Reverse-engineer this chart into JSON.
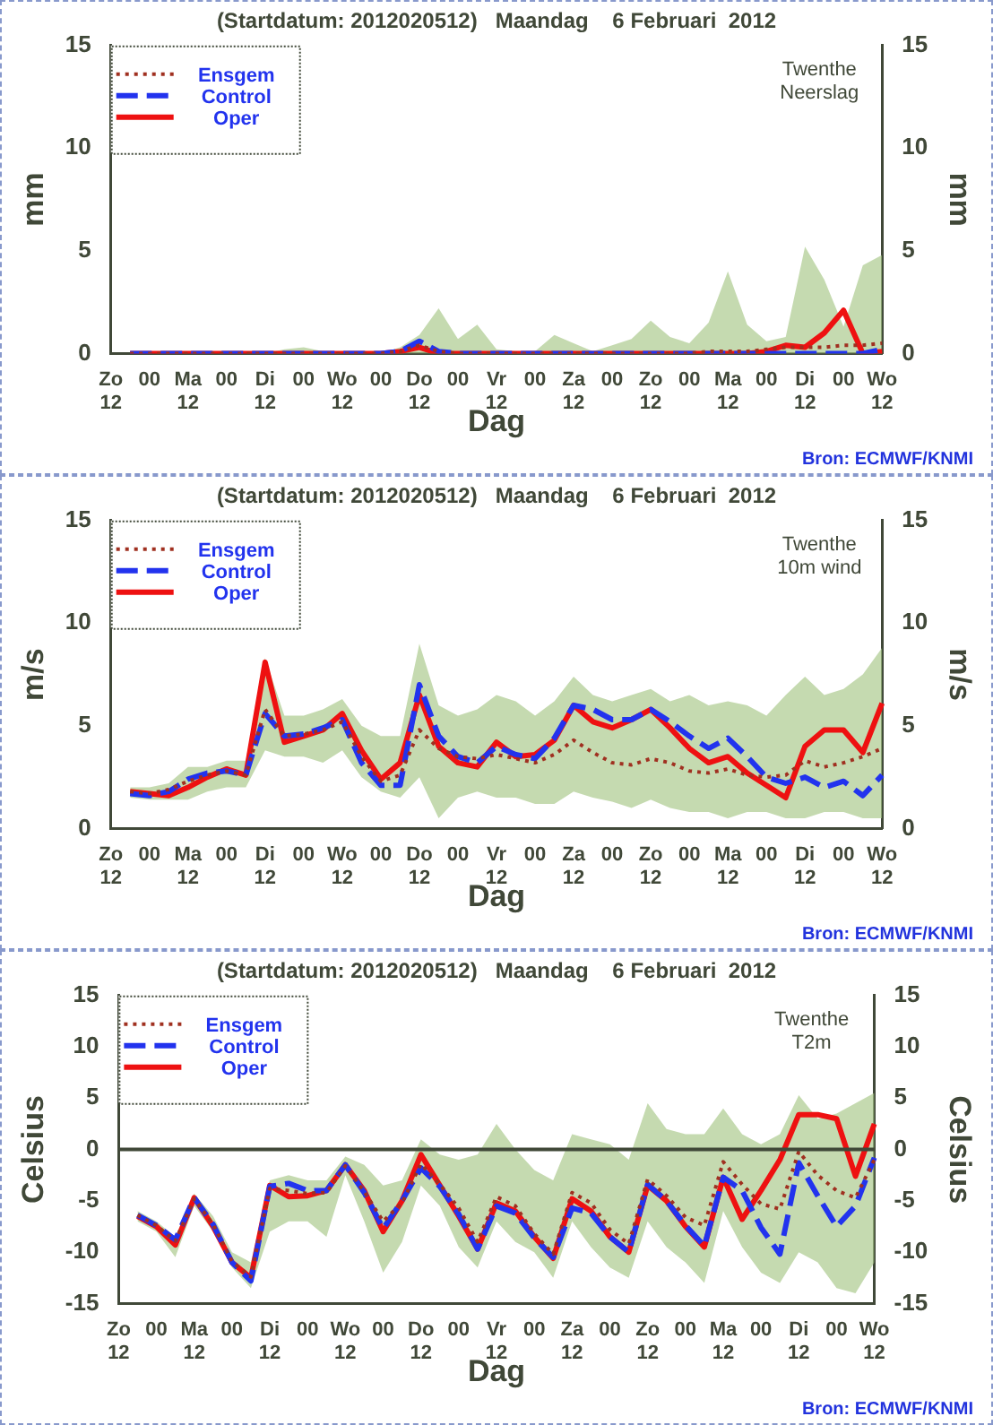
{
  "chart_data": [
    {
      "type": "line",
      "title": "(Startdatum: 2012020512)   Maandag    6 Februari  2012",
      "xlabel": "Dag",
      "ylabel": "mm",
      "y2label": "mm",
      "legend": "top left",
      "marker": "none",
      "grid": false,
      "categories": [
        "Zo\n12",
        null,
        "00",
        null,
        "Ma\n12",
        null,
        "00",
        null,
        "Di\n12",
        null,
        "00",
        null,
        "Wo\n12",
        null,
        "00",
        null,
        "Do\n12",
        null,
        "00",
        null,
        "Vr\n12",
        null,
        "00",
        null,
        "Za\n12",
        null,
        "00",
        null,
        "Zo\n12",
        null,
        "00",
        null,
        "Ma\n12",
        null,
        "00",
        null,
        "Di\n12",
        null,
        "00",
        null,
        "Wo\n12"
      ],
      "ylim": [
        0,
        15
      ],
      "yticks": [
        0,
        5,
        10,
        15
      ],
      "y2lim": [
        0,
        15
      ],
      "y2ticks": [
        0,
        5,
        10,
        15
      ],
      "annotations": [
        "Twenthe\nNeerslag",
        "Bron: ECMWF/KNMI"
      ],
      "series": [
        {
          "name": "Ensgem",
          "color": "#a03020",
          "line_style": "dotted",
          "values": [
            null,
            0,
            0,
            0,
            0,
            0,
            0,
            0,
            0,
            0,
            0,
            0,
            0,
            0,
            0,
            0.1,
            0.4,
            0.1,
            0,
            0,
            0,
            0,
            0,
            0,
            0,
            0,
            0,
            0,
            0,
            0,
            0,
            0.1,
            0.1,
            0.1,
            0.2,
            0.3,
            0.3,
            0.3,
            0.4,
            0.4,
            0.5
          ],
          "lower": [
            null,
            0,
            0,
            0,
            0,
            0,
            0,
            0,
            0,
            0,
            0,
            0,
            0,
            0,
            0,
            0,
            0,
            0,
            0,
            0,
            0,
            0,
            0,
            0,
            0,
            0,
            0,
            0,
            0,
            0,
            0,
            0,
            0,
            0,
            0,
            0,
            0,
            0,
            0,
            0,
            0
          ],
          "upper": [
            null,
            0,
            0,
            0,
            0,
            0,
            0,
            0,
            0,
            0.2,
            0.3,
            0.1,
            0,
            0,
            0,
            0.3,
            0.9,
            2.2,
            0.7,
            1.4,
            0.2,
            0.1,
            0.1,
            0.9,
            0.5,
            0.1,
            0.4,
            0.7,
            1.6,
            0.8,
            0.5,
            1.5,
            4.0,
            1.4,
            0.6,
            0.8,
            5.2,
            3.6,
            1.3,
            4.3,
            4.8
          ]
        },
        {
          "name": "Control",
          "color": "#2233ee",
          "line_style": "dashed",
          "values": [
            null,
            0,
            0,
            0,
            0,
            0,
            0,
            0,
            0,
            0,
            0,
            0,
            0,
            0,
            0,
            0.1,
            0.6,
            0.1,
            0,
            0,
            0,
            0,
            0,
            0,
            0,
            0,
            0,
            0,
            0,
            0,
            0,
            0,
            0,
            0,
            0,
            0,
            0,
            0,
            0,
            0,
            0.2
          ]
        },
        {
          "name": "Oper",
          "color": "#ee1111",
          "line_style": "solid",
          "values": [
            null,
            0,
            0,
            0,
            0,
            0,
            0,
            0,
            0,
            0,
            0,
            0,
            0,
            0,
            0,
            0.1,
            0.3,
            0,
            0,
            0,
            0,
            0,
            0,
            0,
            0,
            0,
            0,
            0,
            0,
            0,
            0,
            0,
            0,
            0,
            0.1,
            0.4,
            0.3,
            1.0,
            2.1,
            0,
            0.1
          ]
        }
      ]
    },
    {
      "type": "line",
      "title": "(Startdatum: 2012020512)   Maandag    6 Februari  2012",
      "xlabel": "Dag",
      "ylabel": "m/s",
      "y2label": "m/s",
      "legend": "top left",
      "marker": "none",
      "grid": false,
      "categories": [
        "Zo\n12",
        null,
        "00",
        null,
        "Ma\n12",
        null,
        "00",
        null,
        "Di\n12",
        null,
        "00",
        null,
        "Wo\n12",
        null,
        "00",
        null,
        "Do\n12",
        null,
        "00",
        null,
        "Vr\n12",
        null,
        "00",
        null,
        "Za\n12",
        null,
        "00",
        null,
        "Zo\n12",
        null,
        "00",
        null,
        "Ma\n12",
        null,
        "00",
        null,
        "Di\n12",
        null,
        "00",
        null,
        "Wo\n12"
      ],
      "ylim": [
        0,
        15
      ],
      "yticks": [
        0,
        5,
        10,
        15
      ],
      "y2lim": [
        0,
        15
      ],
      "y2ticks": [
        0,
        5,
        10,
        15
      ],
      "annotations": [
        "Twenthe\n10m wind",
        "Bron: ECMWF/KNMI"
      ],
      "series": [
        {
          "name": "Ensgem",
          "color": "#a03020",
          "line_style": "dotted",
          "values": [
            null,
            1.8,
            1.7,
            1.9,
            2.3,
            2.6,
            2.8,
            2.6,
            5.8,
            4.5,
            4.6,
            4.8,
            5.2,
            3.5,
            2.3,
            2.6,
            4.8,
            3.9,
            3.5,
            3.4,
            3.6,
            3.4,
            3.2,
            3.6,
            4.3,
            3.7,
            3.2,
            3.1,
            3.4,
            3.2,
            2.8,
            2.7,
            2.9,
            2.6,
            2.5,
            2.6,
            3.3,
            3.0,
            3.2,
            3.5,
            3.9
          ],
          "lower": [
            null,
            1.5,
            1.4,
            1.4,
            1.4,
            1.8,
            2.0,
            2.0,
            3.8,
            3.5,
            3.5,
            3.2,
            3.8,
            2.5,
            1.8,
            1.5,
            2.5,
            0.5,
            1.5,
            1.8,
            1.5,
            1.5,
            1.2,
            1.2,
            1.8,
            1.5,
            1.3,
            1.0,
            1.4,
            1.0,
            0.8,
            0.8,
            0.5,
            0.8,
            0.8,
            0.5,
            0.5,
            0.8,
            0.8,
            0.5,
            0.5
          ],
          "upper": [
            null,
            2.0,
            2.0,
            2.2,
            3.0,
            3.0,
            3.3,
            3.3,
            8.3,
            5.5,
            5.5,
            5.8,
            6.3,
            5.0,
            4.5,
            4.5,
            9.0,
            6.0,
            5.5,
            5.8,
            6.5,
            6.2,
            5.5,
            6.2,
            7.4,
            6.5,
            6.2,
            6.5,
            6.8,
            6.2,
            6.5,
            6.0,
            6.2,
            6.0,
            5.5,
            6.5,
            7.4,
            6.5,
            6.8,
            7.5,
            8.8
          ]
        },
        {
          "name": "Control",
          "color": "#2233ee",
          "line_style": "dashed",
          "values": [
            null,
            1.7,
            1.6,
            1.8,
            2.4,
            2.7,
            2.8,
            2.6,
            5.6,
            4.5,
            4.6,
            4.9,
            5.3,
            3.2,
            2.1,
            2.1,
            7.0,
            4.5,
            3.5,
            3.2,
            4.0,
            3.6,
            3.4,
            4.4,
            6.0,
            5.8,
            5.3,
            5.3,
            5.8,
            5.2,
            4.5,
            3.9,
            4.4,
            3.5,
            2.5,
            2.2,
            2.5,
            2.0,
            2.3,
            1.6,
            2.6
          ]
        },
        {
          "name": "Oper",
          "color": "#ee1111",
          "line_style": "solid",
          "values": [
            null,
            1.8,
            1.7,
            1.6,
            2.0,
            2.5,
            2.9,
            2.6,
            8.1,
            4.2,
            4.5,
            4.8,
            5.6,
            3.8,
            2.4,
            3.2,
            6.5,
            4.0,
            3.2,
            3.0,
            4.2,
            3.5,
            3.6,
            4.3,
            6.0,
            5.2,
            4.9,
            5.3,
            5.8,
            4.9,
            3.9,
            3.2,
            3.5,
            2.7,
            2.1,
            1.5,
            4.0,
            4.8,
            4.8,
            3.7,
            6.1
          ]
        }
      ]
    },
    {
      "type": "line",
      "title": "(Startdatum: 2012020512)   Maandag    6 Februari  2012",
      "xlabel": "Dag",
      "ylabel": "Celsius",
      "y2label": "Celsius",
      "legend": "top left",
      "marker": "none",
      "grid": false,
      "categories": [
        "Zo\n12",
        null,
        "00",
        null,
        "Ma\n12",
        null,
        "00",
        null,
        "Di\n12",
        null,
        "00",
        null,
        "Wo\n12",
        null,
        "00",
        null,
        "Do\n12",
        null,
        "00",
        null,
        "Vr\n12",
        null,
        "00",
        null,
        "Za\n12",
        null,
        "00",
        null,
        "Zo\n12",
        null,
        "00",
        null,
        "Ma\n12",
        null,
        "00",
        null,
        "Di\n12",
        null,
        "00",
        null,
        "Wo\n12"
      ],
      "ylim": [
        -15,
        15
      ],
      "yticks": [
        -15,
        -10,
        -5,
        0,
        5,
        10,
        15
      ],
      "y2lim": [
        -15,
        15
      ],
      "y2ticks": [
        -15,
        -10,
        -5,
        0,
        5,
        10,
        15
      ],
      "ref_lines": [
        {
          "axis": "y",
          "value": 0,
          "color": "#404838"
        }
      ],
      "annotations": [
        "Twenthe\nT2m",
        "Bron: ECMWF/KNMI"
      ],
      "series": [
        {
          "name": "Ensgem",
          "color": "#a03020",
          "line_style": "dotted",
          "values": [
            null,
            -6.4,
            -7.4,
            -8.9,
            -4.8,
            -7.3,
            -10.9,
            -12.4,
            -3.8,
            -4.0,
            -4.3,
            -4.2,
            -1.6,
            -4.1,
            -7.0,
            -5.2,
            -1.4,
            -3.4,
            -5.7,
            -9.0,
            -4.6,
            -5.5,
            -8.2,
            -10.2,
            -4.2,
            -5.2,
            -7.8,
            -9.2,
            -2.9,
            -4.5,
            -6.6,
            -7.4,
            -1.2,
            -3.4,
            -5.3,
            -5.8,
            -0.2,
            -2.5,
            -4.0,
            -4.7,
            -1.0
          ],
          "lower": [
            null,
            -7,
            -8,
            -10.5,
            -5.5,
            -8,
            -11.5,
            -13.5,
            -8,
            -7,
            -7,
            -8.5,
            -2.5,
            -7,
            -12,
            -9,
            -3.5,
            -5.5,
            -9.5,
            -11.5,
            -7,
            -9,
            -10,
            -12.5,
            -7,
            -9.5,
            -11.5,
            -12.5,
            -7,
            -9.5,
            -11,
            -13,
            -6,
            -9.5,
            -12,
            -13,
            -10,
            -11,
            -13.5,
            -14,
            -11
          ],
          "upper": [
            null,
            -6,
            -7,
            -8.5,
            -4.3,
            -6.5,
            -10,
            -11,
            -3,
            -2.5,
            -3,
            -3,
            -0.7,
            -1.5,
            -3.5,
            -3,
            1.0,
            -0.5,
            -1,
            -0.5,
            2.5,
            0,
            -2,
            -3,
            1.5,
            1.0,
            0.5,
            -1,
            4.5,
            2,
            1.5,
            1.5,
            4.0,
            1.5,
            0.5,
            1.5,
            5.3,
            3,
            3.5,
            4.5,
            5.5
          ]
        },
        {
          "name": "Control",
          "color": "#2233ee",
          "line_style": "dashed",
          "values": [
            null,
            -6.4,
            -7.4,
            -8.8,
            -4.7,
            -7.3,
            -11.0,
            -12.8,
            -3.6,
            -3.3,
            -4.0,
            -4.0,
            -1.5,
            -4.2,
            -7.7,
            -5.0,
            -1.8,
            -3.6,
            -6.3,
            -9.7,
            -5.5,
            -6.2,
            -8.6,
            -10.5,
            -5.7,
            -6.2,
            -8.5,
            -10.0,
            -3.4,
            -5.0,
            -7.4,
            -9.4,
            -2.7,
            -4.0,
            -7.6,
            -10.2,
            -1.3,
            -4.5,
            -7.5,
            -5.5,
            -0.8
          ]
        },
        {
          "name": "Oper",
          "color": "#ee1111",
          "line_style": "solid",
          "values": [
            null,
            -6.5,
            -7.5,
            -9.3,
            -4.7,
            -7.5,
            -11.0,
            -12.5,
            -3.5,
            -4.6,
            -4.5,
            -4.0,
            -1.5,
            -4.0,
            -8.0,
            -5.0,
            -0.5,
            -3.5,
            -6.5,
            -9.7,
            -5.2,
            -6.0,
            -8.5,
            -10.6,
            -4.8,
            -6.0,
            -8.5,
            -10.0,
            -3.5,
            -5.0,
            -7.5,
            -9.5,
            -2.7,
            -6.8,
            -4.0,
            -1.0,
            3.4,
            3.4,
            3.0,
            -2.6,
            2.5
          ]
        }
      ]
    }
  ]
}
